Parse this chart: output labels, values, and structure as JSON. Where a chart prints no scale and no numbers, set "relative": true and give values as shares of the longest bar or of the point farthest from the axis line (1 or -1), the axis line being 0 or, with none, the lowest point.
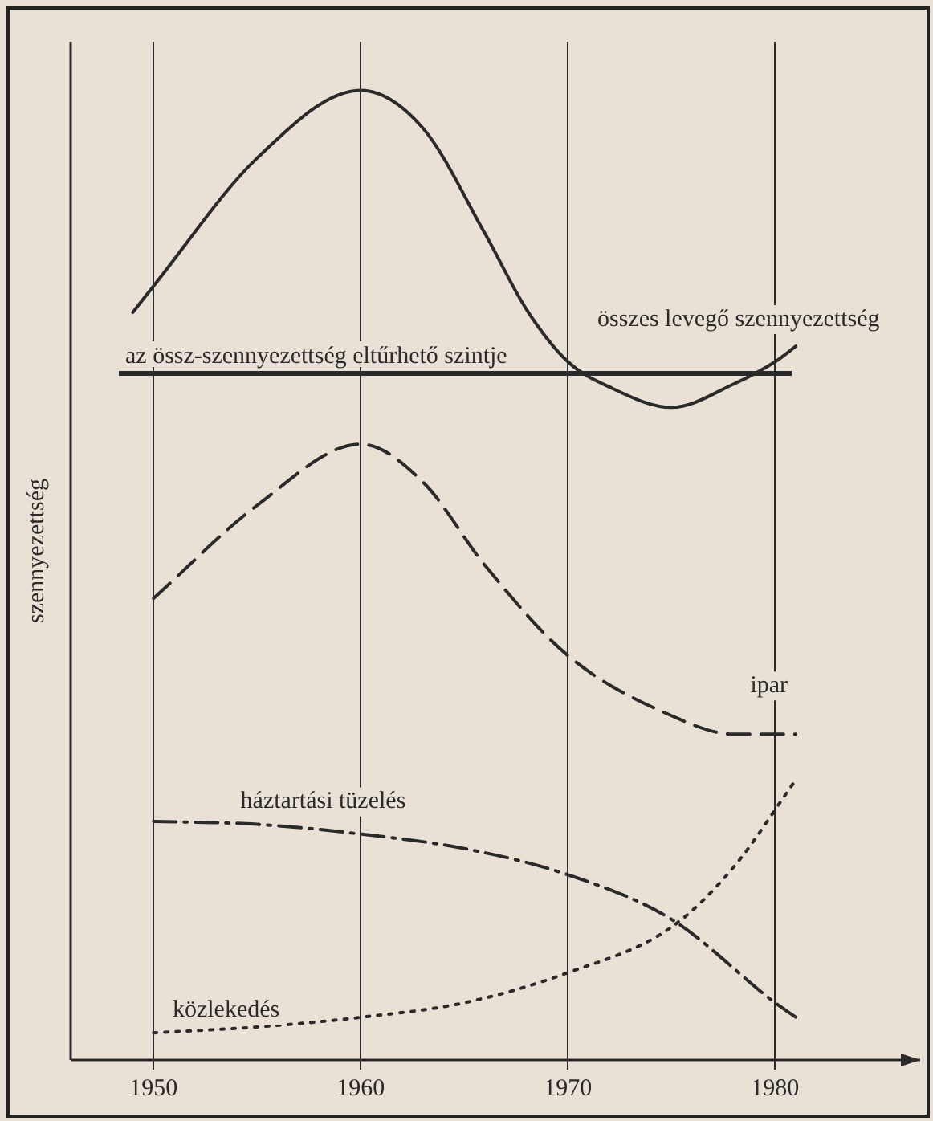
{
  "chart_data": {
    "type": "line",
    "relative": true,
    "ylabel": "szennyezettség",
    "xlim": [
      1946,
      1987
    ],
    "xticks": [
      1950,
      1960,
      1970,
      1980
    ],
    "grid": "x",
    "legend": false,
    "marker": "none",
    "ref_lines": [
      {
        "axis": "y",
        "value": 0.708,
        "label": "az össz-szennyezettség eltűrhető szintje",
        "color": "#2a2a2a",
        "line_style": "solid"
      }
    ],
    "series": [
      {
        "name": "összes levegő szennyezettség",
        "color": "#2a2a2a",
        "line_style": "solid",
        "x": [
          1949,
          1950,
          1955,
          1960,
          1963,
          1966,
          1968,
          1970,
          1972,
          1975,
          1978,
          1980,
          1981
        ],
        "values": [
          0.771,
          0.798,
          0.93,
          1,
          0.961,
          0.852,
          0.774,
          0.72,
          0.694,
          0.673,
          0.697,
          0.72,
          0.736
        ]
      },
      {
        "name": "ipar",
        "color": "#2a2a2a",
        "line_style": "dashed",
        "x": [
          1950,
          1955,
          1960,
          1963,
          1966,
          1970,
          1975,
          1978,
          1981
        ],
        "values": [
          0.476,
          0.572,
          0.635,
          0.596,
          0.51,
          0.417,
          0.355,
          0.336,
          0.336
        ]
      },
      {
        "name": "háztartási tüzelés",
        "color": "#2a2a2a",
        "line_style": "dashdot",
        "x": [
          1950,
          1955,
          1960,
          1965,
          1970,
          1975,
          1980,
          1981
        ],
        "values": [
          0.246,
          0.243,
          0.233,
          0.218,
          0.191,
          0.145,
          0.059,
          0.044
        ]
      },
      {
        "name": "közlekedés",
        "color": "#2a2a2a",
        "line_style": "dotted",
        "x": [
          1950,
          1955,
          1960,
          1965,
          1970,
          1975,
          1978,
          1981
        ],
        "values": [
          0.028,
          0.034,
          0.044,
          0.059,
          0.09,
          0.137,
          0.199,
          0.289
        ]
      }
    ]
  }
}
